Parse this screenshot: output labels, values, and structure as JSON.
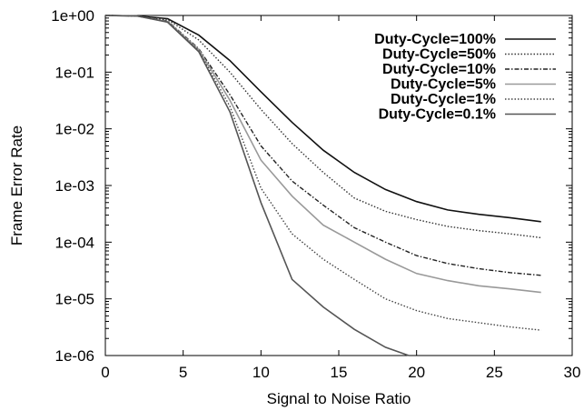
{
  "chart_data": {
    "type": "line",
    "title": "",
    "xlabel": "Signal to Noise Ratio",
    "ylabel": "Frame Error Rate",
    "xlim": [
      0,
      30
    ],
    "ylim": [
      1e-06,
      1
    ],
    "yscale": "log",
    "x_ticks": [
      "0",
      "5",
      "10",
      "15",
      "20",
      "25",
      "30"
    ],
    "y_ticks": [
      "1e+00",
      "1e-01",
      "1e-02",
      "1e-03",
      "1e-04",
      "1e-05",
      "1e-06"
    ],
    "grid": false,
    "legend_position": "top-right",
    "series": [
      {
        "name": "Duty-Cycle=100%",
        "style": "solid",
        "color": "#111111",
        "x": [
          0,
          2,
          4,
          6,
          8,
          10,
          12,
          14,
          16,
          18,
          20,
          22,
          24,
          26,
          28
        ],
        "y": [
          1.0,
          0.98,
          0.88,
          0.45,
          0.16,
          0.045,
          0.013,
          0.0042,
          0.0017,
          0.00085,
          0.00052,
          0.00037,
          0.00031,
          0.00027,
          0.00023
        ]
      },
      {
        "name": "Duty-Cycle=50%",
        "style": "dotted",
        "color": "#333333",
        "x": [
          0,
          2,
          4,
          6,
          8,
          10,
          12,
          14,
          16,
          18,
          20,
          22,
          24,
          26,
          28
        ],
        "y": [
          1.0,
          0.98,
          0.85,
          0.37,
          0.1,
          0.022,
          0.0055,
          0.0017,
          0.0006,
          0.00035,
          0.00025,
          0.00019,
          0.00016,
          0.00014,
          0.00012
        ]
      },
      {
        "name": "Duty-Cycle=10%",
        "style": "dashdot",
        "color": "#222222",
        "x": [
          0,
          2,
          4,
          6,
          8,
          10,
          12,
          14,
          16,
          18,
          20,
          22,
          24,
          26,
          28
        ],
        "y": [
          1.0,
          0.98,
          0.8,
          0.26,
          0.04,
          0.005,
          0.0012,
          0.00045,
          0.00018,
          0.0001,
          5.8e-05,
          4.2e-05,
          3.4e-05,
          2.9e-05,
          2.6e-05
        ]
      },
      {
        "name": "Duty-Cycle=5%",
        "style": "solid",
        "color": "#999999",
        "x": [
          0,
          2,
          4,
          6,
          8,
          10,
          12,
          14,
          16,
          18,
          20,
          22,
          24,
          26,
          28
        ],
        "y": [
          1.0,
          0.98,
          0.78,
          0.25,
          0.032,
          0.0028,
          0.00065,
          0.0002,
          0.0001,
          5e-05,
          2.8e-05,
          2.1e-05,
          1.7e-05,
          1.5e-05,
          1.3e-05
        ]
      },
      {
        "name": "Duty-Cycle=1%",
        "style": "dotted",
        "color": "#444444",
        "x": [
          0,
          2,
          4,
          6,
          8,
          10,
          12,
          14,
          16,
          18,
          20,
          22,
          24,
          26,
          28
        ],
        "y": [
          1.0,
          0.98,
          0.77,
          0.24,
          0.025,
          0.0009,
          0.00014,
          5e-05,
          2.2e-05,
          1e-05,
          6.2e-06,
          4.5e-06,
          3.8e-06,
          3.2e-06,
          2.8e-06
        ]
      },
      {
        "name": "Duty-Cycle=0.1%",
        "style": "solid",
        "color": "#555555",
        "x": [
          0,
          2,
          4,
          6,
          8,
          10,
          12,
          14,
          16,
          18,
          19.5
        ],
        "y": [
          1.0,
          0.98,
          0.76,
          0.23,
          0.02,
          0.0005,
          2.2e-05,
          7.2e-06,
          2.9e-06,
          1.4e-06,
          1e-06
        ]
      }
    ]
  }
}
